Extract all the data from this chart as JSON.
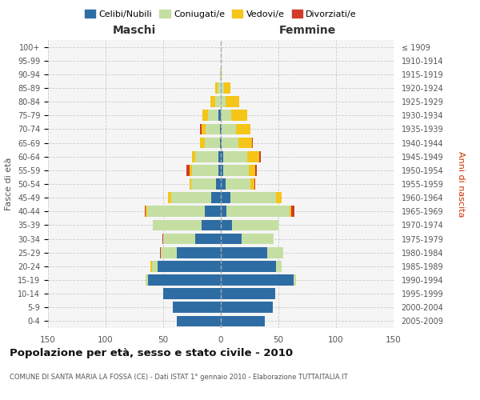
{
  "age_groups": [
    "0-4",
    "5-9",
    "10-14",
    "15-19",
    "20-24",
    "25-29",
    "30-34",
    "35-39",
    "40-44",
    "45-49",
    "50-54",
    "55-59",
    "60-64",
    "65-69",
    "70-74",
    "75-79",
    "80-84",
    "85-89",
    "90-94",
    "95-99",
    "100+"
  ],
  "birth_years": [
    "2005-2009",
    "2000-2004",
    "1995-1999",
    "1990-1994",
    "1985-1989",
    "1980-1984",
    "1975-1979",
    "1970-1974",
    "1965-1969",
    "1960-1964",
    "1955-1959",
    "1950-1954",
    "1945-1949",
    "1940-1944",
    "1935-1939",
    "1930-1934",
    "1925-1929",
    "1920-1924",
    "1915-1919",
    "1910-1914",
    "≤ 1909"
  ],
  "maschi": {
    "celibi": [
      38,
      42,
      50,
      63,
      55,
      38,
      22,
      17,
      14,
      8,
      4,
      2,
      2,
      1,
      1,
      2,
      0,
      0,
      0,
      0,
      0
    ],
    "coniugati": [
      0,
      0,
      0,
      2,
      5,
      14,
      28,
      42,
      50,
      35,
      22,
      23,
      20,
      13,
      12,
      9,
      5,
      3,
      1,
      0,
      0
    ],
    "vedovi": [
      0,
      0,
      0,
      0,
      1,
      0,
      0,
      0,
      1,
      3,
      1,
      2,
      3,
      4,
      4,
      5,
      4,
      2,
      0,
      0,
      0
    ],
    "divorziati": [
      0,
      0,
      0,
      0,
      0,
      1,
      1,
      0,
      1,
      0,
      0,
      3,
      0,
      0,
      1,
      0,
      0,
      0,
      0,
      0,
      0
    ]
  },
  "femmine": {
    "nubili": [
      38,
      45,
      47,
      63,
      48,
      40,
      18,
      10,
      5,
      8,
      4,
      2,
      2,
      1,
      1,
      0,
      0,
      0,
      0,
      0,
      0
    ],
    "coniugate": [
      0,
      0,
      0,
      2,
      5,
      14,
      28,
      40,
      55,
      40,
      22,
      22,
      21,
      14,
      12,
      9,
      4,
      3,
      0,
      0,
      0
    ],
    "vedove": [
      0,
      0,
      0,
      0,
      0,
      0,
      0,
      0,
      1,
      5,
      3,
      6,
      10,
      12,
      13,
      14,
      12,
      5,
      1,
      0,
      0
    ],
    "divorziate": [
      0,
      0,
      0,
      0,
      0,
      0,
      0,
      0,
      3,
      0,
      1,
      1,
      2,
      1,
      0,
      0,
      0,
      0,
      0,
      0,
      0
    ]
  },
  "colors": {
    "celibi": "#2e6da4",
    "coniugati": "#c5dfa3",
    "vedovi": "#f5c518",
    "divorziati": "#d13b2a"
  },
  "xlim": 150,
  "title": "Popolazione per età, sesso e stato civile - 2010",
  "subtitle": "COMUNE DI SANTA MARIA LA FOSSA (CE) - Dati ISTAT 1° gennaio 2010 - Elaborazione TUTTAITALIA.IT",
  "ylabel_left": "Fasce di età",
  "ylabel_right": "Anni di nascita",
  "xlabel_maschi": "Maschi",
  "xlabel_femmine": "Femmine",
  "bg_color": "#ffffff",
  "grid_color": "#cccccc",
  "ax_bg": "#f5f5f5"
}
